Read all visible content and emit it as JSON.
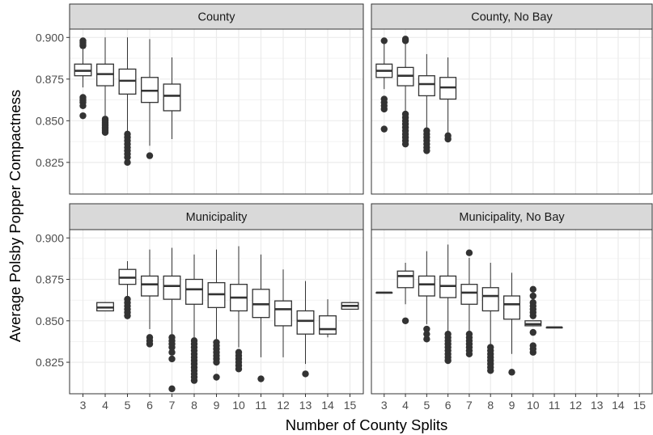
{
  "chart_data": {
    "type": "boxplot",
    "xlabel": "Number of County Splits",
    "ylabel": "Average Polsby Popper Compactness",
    "x_ticks": [
      "3",
      "4",
      "5",
      "6",
      "7",
      "8",
      "9",
      "10",
      "11",
      "12",
      "13",
      "14",
      "15"
    ],
    "y_ticks": [
      "0.825",
      "0.850",
      "0.875",
      "0.900"
    ],
    "ylim": [
      0.806,
      0.905
    ],
    "grid": true,
    "layout": "2x2 facets",
    "colors": {
      "panel_bg": "#ffffff",
      "grid": "#ebebeb",
      "strip_bg": "#d9d9d9",
      "box": "#333333",
      "outlier": "#333333"
    },
    "panels": [
      {
        "title": "County",
        "boxes": [
          {
            "x": 3,
            "whisker_low": 0.87,
            "q1": 0.877,
            "median": 0.88,
            "q3": 0.884,
            "whisker_high": 0.893,
            "outliers": [
              0.853,
              0.859,
              0.861,
              0.862,
              0.863,
              0.864,
              0.895,
              0.896,
              0.897,
              0.898
            ]
          },
          {
            "x": 4,
            "whisker_low": 0.853,
            "q1": 0.871,
            "median": 0.878,
            "q3": 0.884,
            "whisker_high": 0.9,
            "outliers": [
              0.843,
              0.844,
              0.845,
              0.846,
              0.847,
              0.848,
              0.849,
              0.85,
              0.851
            ]
          },
          {
            "x": 5,
            "whisker_low": 0.843,
            "q1": 0.866,
            "median": 0.874,
            "q3": 0.881,
            "whisker_high": 0.9,
            "outliers": [
              0.825,
              0.828,
              0.83,
              0.832,
              0.834,
              0.836,
              0.838,
              0.84,
              0.842
            ]
          },
          {
            "x": 6,
            "whisker_low": 0.835,
            "q1": 0.861,
            "median": 0.868,
            "q3": 0.876,
            "whisker_high": 0.899,
            "outliers": [
              0.829
            ]
          },
          {
            "x": 7,
            "whisker_low": 0.839,
            "q1": 0.856,
            "median": 0.865,
            "q3": 0.872,
            "whisker_high": 0.888,
            "outliers": []
          }
        ]
      },
      {
        "title": "County, No Bay",
        "boxes": [
          {
            "x": 3,
            "whisker_low": 0.869,
            "q1": 0.876,
            "median": 0.88,
            "q3": 0.884,
            "whisker_high": 0.896,
            "outliers": [
              0.845,
              0.857,
              0.859,
              0.861,
              0.863,
              0.898
            ]
          },
          {
            "x": 4,
            "whisker_low": 0.856,
            "q1": 0.871,
            "median": 0.877,
            "q3": 0.882,
            "whisker_high": 0.896,
            "outliers": [
              0.836,
              0.838,
              0.84,
              0.842,
              0.844,
              0.846,
              0.848,
              0.85,
              0.852,
              0.854,
              0.898,
              0.899
            ]
          },
          {
            "x": 5,
            "whisker_low": 0.845,
            "q1": 0.865,
            "median": 0.872,
            "q3": 0.877,
            "whisker_high": 0.89,
            "outliers": [
              0.832,
              0.834,
              0.836,
              0.838,
              0.84,
              0.842,
              0.844
            ]
          },
          {
            "x": 6,
            "whisker_low": 0.843,
            "q1": 0.863,
            "median": 0.87,
            "q3": 0.876,
            "whisker_high": 0.888,
            "outliers": [
              0.839,
              0.841
            ]
          }
        ]
      },
      {
        "title": "Municipality",
        "boxes": [
          {
            "x": 4,
            "whisker_low": 0.856,
            "q1": 0.856,
            "median": 0.858,
            "q3": 0.861,
            "whisker_high": 0.861,
            "outliers": []
          },
          {
            "x": 5,
            "whisker_low": 0.864,
            "q1": 0.872,
            "median": 0.876,
            "q3": 0.881,
            "whisker_high": 0.886,
            "outliers": [
              0.853,
              0.855,
              0.857,
              0.859,
              0.861,
              0.863
            ]
          },
          {
            "x": 6,
            "whisker_low": 0.845,
            "q1": 0.865,
            "median": 0.872,
            "q3": 0.877,
            "whisker_high": 0.893,
            "outliers": [
              0.836,
              0.838,
              0.84
            ]
          },
          {
            "x": 7,
            "whisker_low": 0.842,
            "q1": 0.863,
            "median": 0.871,
            "q3": 0.877,
            "whisker_high": 0.894,
            "outliers": [
              0.809,
              0.827,
              0.831,
              0.834,
              0.836,
              0.838,
              0.84
            ]
          },
          {
            "x": 8,
            "whisker_low": 0.84,
            "q1": 0.86,
            "median": 0.869,
            "q3": 0.875,
            "whisker_high": 0.89,
            "outliers": [
              0.814,
              0.816,
              0.818,
              0.82,
              0.822,
              0.824,
              0.826,
              0.828,
              0.83,
              0.832,
              0.834,
              0.836,
              0.838
            ]
          },
          {
            "x": 9,
            "whisker_low": 0.839,
            "q1": 0.858,
            "median": 0.866,
            "q3": 0.873,
            "whisker_high": 0.893,
            "outliers": [
              0.816,
              0.825,
              0.827,
              0.829,
              0.831,
              0.833,
              0.835,
              0.837
            ]
          },
          {
            "x": 10,
            "whisker_low": 0.834,
            "q1": 0.856,
            "median": 0.864,
            "q3": 0.872,
            "whisker_high": 0.895,
            "outliers": [
              0.821,
              0.823,
              0.825,
              0.827,
              0.829,
              0.831
            ]
          },
          {
            "x": 11,
            "whisker_low": 0.828,
            "q1": 0.852,
            "median": 0.86,
            "q3": 0.869,
            "whisker_high": 0.89,
            "outliers": [
              0.815
            ]
          },
          {
            "x": 12,
            "whisker_low": 0.828,
            "q1": 0.847,
            "median": 0.857,
            "q3": 0.862,
            "whisker_high": 0.881,
            "outliers": []
          },
          {
            "x": 13,
            "whisker_low": 0.824,
            "q1": 0.842,
            "median": 0.85,
            "q3": 0.856,
            "whisker_high": 0.874,
            "outliers": [
              0.818
            ]
          },
          {
            "x": 14,
            "whisker_low": 0.84,
            "q1": 0.842,
            "median": 0.845,
            "q3": 0.853,
            "whisker_high": 0.863,
            "outliers": []
          },
          {
            "x": 15,
            "whisker_low": 0.857,
            "q1": 0.857,
            "median": 0.859,
            "q3": 0.861,
            "whisker_high": 0.861,
            "outliers": []
          }
        ]
      },
      {
        "title": "Municipality, No Bay",
        "boxes": [
          {
            "x": 3,
            "whisker_low": 0.867,
            "q1": 0.867,
            "median": 0.867,
            "q3": 0.867,
            "whisker_high": 0.867,
            "outliers": []
          },
          {
            "x": 4,
            "whisker_low": 0.86,
            "q1": 0.87,
            "median": 0.877,
            "q3": 0.88,
            "whisker_high": 0.885,
            "outliers": [
              0.85
            ]
          },
          {
            "x": 5,
            "whisker_low": 0.848,
            "q1": 0.865,
            "median": 0.872,
            "q3": 0.877,
            "whisker_high": 0.892,
            "outliers": [
              0.839,
              0.842,
              0.845
            ]
          },
          {
            "x": 6,
            "whisker_low": 0.843,
            "q1": 0.864,
            "median": 0.871,
            "q3": 0.877,
            "whisker_high": 0.896,
            "outliers": [
              0.826,
              0.828,
              0.83,
              0.832,
              0.834,
              0.836,
              0.838,
              0.84,
              0.842
            ]
          },
          {
            "x": 7,
            "whisker_low": 0.843,
            "q1": 0.86,
            "median": 0.867,
            "q3": 0.872,
            "whisker_high": 0.888,
            "outliers": [
              0.83,
              0.832,
              0.834,
              0.836,
              0.838,
              0.84,
              0.842,
              0.891
            ]
          },
          {
            "x": 8,
            "whisker_low": 0.835,
            "q1": 0.856,
            "median": 0.865,
            "q3": 0.87,
            "whisker_high": 0.885,
            "outliers": [
              0.82,
              0.822,
              0.824,
              0.826,
              0.828,
              0.83,
              0.832,
              0.834
            ]
          },
          {
            "x": 9,
            "whisker_low": 0.83,
            "q1": 0.851,
            "median": 0.86,
            "q3": 0.865,
            "whisker_high": 0.879,
            "outliers": [
              0.819
            ]
          },
          {
            "x": 10,
            "whisker_low": 0.847,
            "q1": 0.847,
            "median": 0.848,
            "q3": 0.85,
            "whisker_high": 0.85,
            "outliers": [
              0.831,
              0.833,
              0.835,
              0.843,
              0.853,
              0.855,
              0.857,
              0.859,
              0.861,
              0.865,
              0.869
            ]
          },
          {
            "x": 11,
            "whisker_low": 0.846,
            "q1": 0.846,
            "median": 0.846,
            "q3": 0.846,
            "whisker_high": 0.846,
            "outliers": []
          }
        ]
      }
    ]
  }
}
